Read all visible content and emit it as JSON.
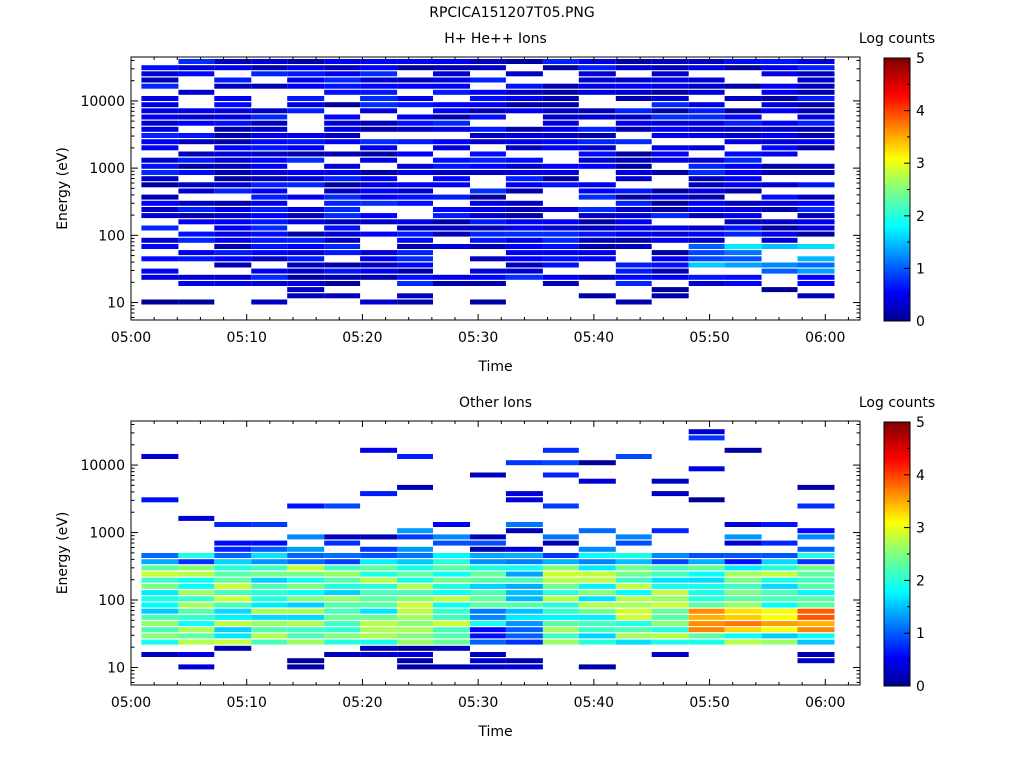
{
  "figure": {
    "title": "RPCICA151207T05.PNG"
  },
  "chart_data": [
    {
      "type": "heatmap",
      "title": "H+ He++ Ions",
      "xlabel": "Time",
      "ylabel": "Energy (eV)",
      "colorbar_label": "Log counts",
      "colorbar_ticks": [
        "0",
        "1",
        "2",
        "3",
        "4",
        "5"
      ],
      "colorbar_range": [
        0,
        5
      ],
      "colormap": "jet",
      "x_ticks": [
        "05:00",
        "05:10",
        "05:20",
        "05:30",
        "05:40",
        "05:50",
        "06:00"
      ],
      "x_range_minutes": [
        0,
        63
      ],
      "y_scale": "log",
      "y_range": [
        5.5,
        45000
      ],
      "y_ticks": [
        "10",
        "100",
        "1000",
        "10000"
      ],
      "time_bins_minutes": [
        [
          0.9,
          4.1
        ],
        [
          4.1,
          7.2
        ],
        [
          7.2,
          10.4
        ],
        [
          10.4,
          13.5
        ],
        [
          13.5,
          16.7
        ],
        [
          16.7,
          19.8
        ],
        [
          19.8,
          23.0
        ],
        [
          23.0,
          26.1
        ],
        [
          26.1,
          29.3
        ],
        [
          29.3,
          32.4
        ],
        [
          32.4,
          35.6
        ],
        [
          35.6,
          38.7
        ],
        [
          38.7,
          41.9
        ],
        [
          41.9,
          45.0
        ],
        [
          45.0,
          48.2
        ],
        [
          48.2,
          51.3
        ],
        [
          51.3,
          54.5
        ],
        [
          54.5,
          57.6
        ],
        [
          57.6,
          60.8
        ]
      ],
      "notes": "Mostly low log counts (0-1, dark blue) from ~20 eV to ~40000 eV; counts 1-1.7 near 30-60 eV after 05:48."
    },
    {
      "type": "heatmap",
      "title": "Other Ions",
      "xlabel": "Time",
      "ylabel": "Energy (eV)",
      "colorbar_label": "Log counts",
      "colorbar_ticks": [
        "0",
        "1",
        "2",
        "3",
        "4",
        "5"
      ],
      "colorbar_range": [
        0,
        5
      ],
      "colormap": "jet",
      "x_ticks": [
        "05:00",
        "05:10",
        "05:20",
        "05:30",
        "05:40",
        "05:50",
        "06:00"
      ],
      "x_range_minutes": [
        0,
        63
      ],
      "y_scale": "log",
      "y_range": [
        5.5,
        45000
      ],
      "y_ticks": [
        "10",
        "100",
        "1000",
        "10000"
      ],
      "notes": "Intense band (log counts 2-3.2) from ~25 eV to ~500 eV across all times, peaking ~4 near 40-60 eV around 05:50; sparse low-count lines above 1000 eV."
    }
  ]
}
